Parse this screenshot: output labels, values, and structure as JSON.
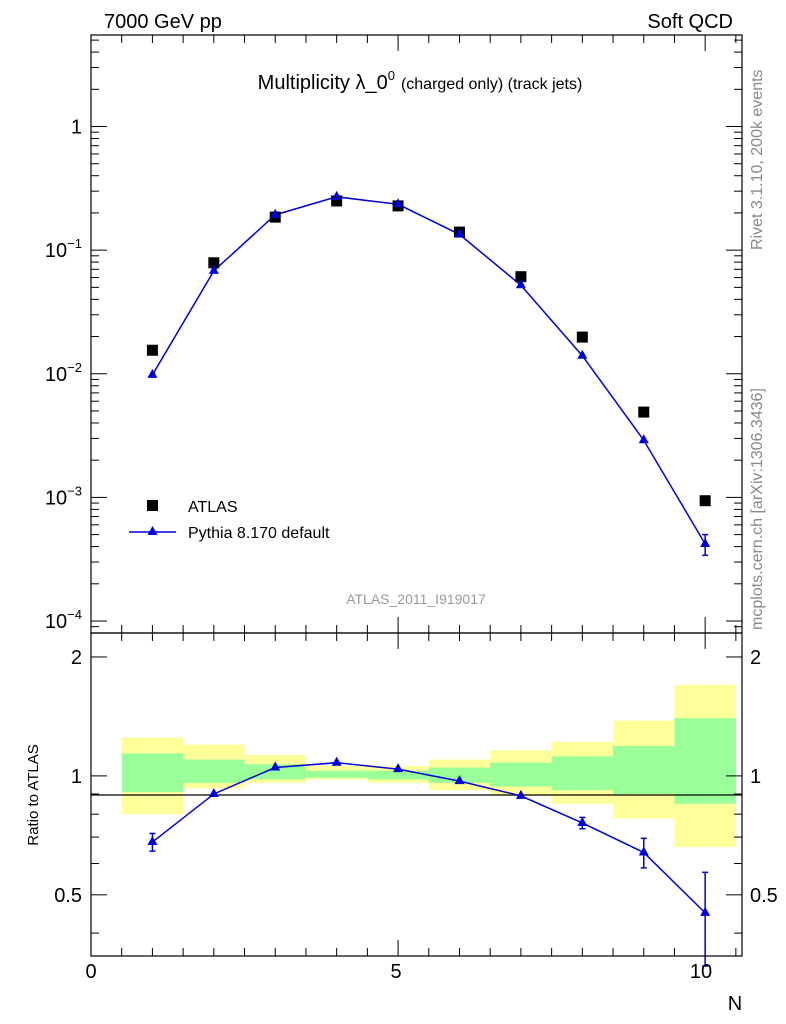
{
  "header": {
    "left": "7000 GeV pp",
    "right": "Soft QCD"
  },
  "side_labels": {
    "top": "Rivet 3.1.10,  200k events",
    "bottom": "mcplots.cern.ch [arXiv:1306.3436]"
  },
  "chart_data": [
    {
      "type": "scatter",
      "title": "Multiplicity λ_0",
      "title_sup": "0",
      "title_suffix": "(charged only) (track jets)",
      "watermark": "ATLAS_2011_I919017",
      "xlabel": "N",
      "ylabel": "",
      "yscale": "log",
      "xlim": [
        0,
        10.6
      ],
      "ylim": [
        8e-05,
        5.5
      ],
      "y_ticks": [
        {
          "base": "1",
          "exp": "",
          "value": 1
        },
        {
          "base": "10",
          "exp": "−1",
          "value": 0.1
        },
        {
          "base": "10",
          "exp": "−2",
          "value": 0.01
        },
        {
          "base": "10",
          "exp": "−3",
          "value": 0.001
        },
        {
          "base": "10",
          "exp": "−4",
          "value": 0.0001
        }
      ],
      "legend": {
        "position": "lower-left"
      },
      "series": [
        {
          "name": "ATLAS",
          "marker": "square",
          "color": "#000000",
          "x": [
            1,
            2,
            3,
            4,
            5,
            6,
            7,
            8,
            9,
            10
          ],
          "y": [
            0.0155,
            0.079,
            0.185,
            0.25,
            0.228,
            0.14,
            0.061,
            0.0198,
            0.0049,
            0.00094
          ]
        },
        {
          "name": "Pythia 8.170 default",
          "marker": "triangle",
          "color": "#0000dd",
          "x": [
            1,
            2,
            3,
            4,
            5,
            6,
            7,
            8,
            9,
            10
          ],
          "y": [
            0.0098,
            0.068,
            0.193,
            0.27,
            0.235,
            0.134,
            0.052,
            0.014,
            0.0029,
            0.00042
          ],
          "yerr": [
            0,
            0,
            0,
            0,
            0,
            0,
            0,
            0,
            0,
            8e-05
          ]
        }
      ]
    },
    {
      "type": "scatter",
      "title": "",
      "xlabel": "N",
      "ylabel": "Ratio to ATLAS",
      "xlim": [
        0,
        10.6
      ],
      "ylim": [
        0.35,
        2.3
      ],
      "x_ticks": [
        "0",
        "5",
        "10"
      ],
      "y_ticks": [
        "0.5",
        "1",
        "2"
      ],
      "y_tick_values": [
        0.5,
        1,
        2
      ],
      "bands": {
        "x_edges": [
          0.5,
          1.5,
          2.5,
          3.5,
          4.5,
          5.5,
          6.5,
          7.5,
          8.5,
          9.5,
          10.5
        ],
        "yellow_low": [
          0.8,
          0.93,
          0.96,
          0.98,
          0.96,
          0.92,
          0.89,
          0.85,
          0.78,
          0.66
        ],
        "yellow_high": [
          1.25,
          1.2,
          1.13,
          1.06,
          1.06,
          1.1,
          1.16,
          1.22,
          1.38,
          1.7
        ],
        "green_low": [
          0.91,
          0.96,
          0.98,
          0.99,
          0.98,
          0.96,
          0.94,
          0.92,
          0.9,
          0.85
        ],
        "green_high": [
          1.14,
          1.1,
          1.07,
          1.03,
          1.03,
          1.05,
          1.08,
          1.12,
          1.19,
          1.4
        ],
        "yellow_color": "#ffff99",
        "green_color": "#99ff99"
      },
      "series": [
        {
          "name": "Pythia 8.170 default",
          "marker": "triangle",
          "color": "#0000dd",
          "x": [
            1,
            2,
            3,
            4,
            5,
            6,
            7,
            8,
            9,
            10
          ],
          "y": [
            0.68,
            0.9,
            1.05,
            1.08,
            1.04,
            0.97,
            0.89,
            0.76,
            0.64,
            0.45
          ],
          "yerr": [
            0.035,
            0.01,
            0.01,
            0.01,
            0.01,
            0.01,
            0.01,
            0.025,
            0.055,
            0.12
          ]
        }
      ]
    }
  ]
}
